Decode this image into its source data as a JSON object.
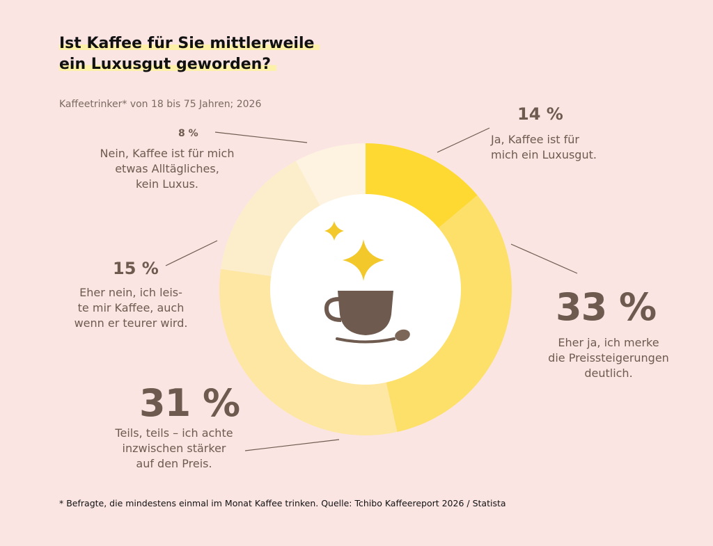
{
  "title": [
    "Ist Kaffee für Sie mittlerweile",
    "ein Luxusgut geworden?"
  ],
  "subtitle": "Kaffeetrinker* von 18 bis 75 Jahren; 2026",
  "footnote": "* Befragte, die mindestens einmal im Monat Kaffee trinken. Quelle: Tchibo Kaffeereport 2026 / Statista",
  "colors": {
    "background": "#fbe5e3",
    "text": "#6e5a4e",
    "cup": "#6e5a4e",
    "sparkle": "#f2c82a"
  },
  "icons": [
    "coffee-cup-icon",
    "sparkle-icon",
    "coffee-bean-icon"
  ],
  "chart_data": {
    "type": "pie",
    "style": "donut",
    "slices": [
      {
        "value": 14,
        "pct_label": "14 %",
        "lines": [
          "Ja, Kaffee ist für",
          "mich ein Luxusgut."
        ],
        "color": "#fdd932"
      },
      {
        "value": 33,
        "pct_label": "33 %",
        "lines": [
          "Eher ja, ich merke",
          "die Preissteigerungen",
          "deutlich."
        ],
        "color": "#fde06a"
      },
      {
        "value": 31,
        "pct_label": "31 %",
        "lines": [
          "Teils, teils – ich achte",
          "inzwischen stärker",
          "auf den Preis."
        ],
        "color": "#fde7a3"
      },
      {
        "value": 15,
        "pct_label": "15 %",
        "lines": [
          "Eher nein, ich leis-",
          "te mir Kaffee, auch",
          "wenn er teurer wird."
        ],
        "color": "#fdeecb"
      },
      {
        "value": 8,
        "pct_label": "8 %",
        "lines": [
          "Nein, Kaffee ist für mich",
          "etwas Alltägliches,",
          "kein Luxus."
        ],
        "color": "#fdf3e0"
      }
    ]
  }
}
